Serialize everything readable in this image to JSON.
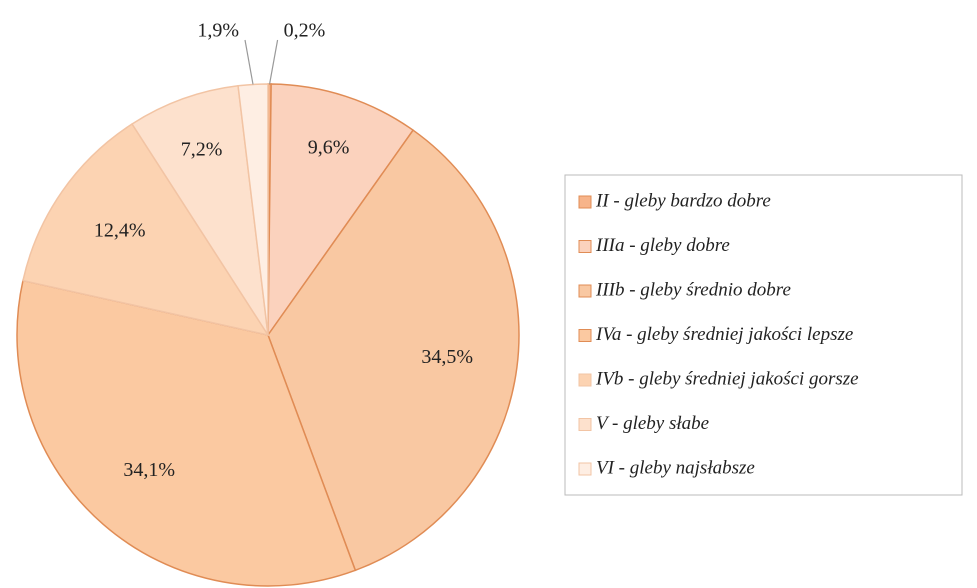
{
  "chart_data": {
    "type": "pie",
    "categories": [
      "II - gleby bardzo dobre",
      "IIIa - gleby dobre",
      "IIIb - gleby średnio dobre",
      "IVa - gleby średniej jakości lepsze",
      "IVb - gleby średniej jakości gorsze",
      "V - gleby słabe",
      "VI - gleby najsłabsze"
    ],
    "values": [
      0.2,
      9.6,
      34.5,
      34.1,
      12.4,
      7.2,
      1.9
    ],
    "value_labels": [
      "0,2%",
      "9,6%",
      "34,5%",
      "34,1%",
      "12,4%",
      "7,2%",
      "1,9%"
    ],
    "colors": [
      "#f7b48a",
      "#fbd2bd",
      "#f9c8a2",
      "#fbc9a1",
      "#fcd3b2",
      "#fde1cd",
      "#feeee3"
    ],
    "legend": "right"
  }
}
